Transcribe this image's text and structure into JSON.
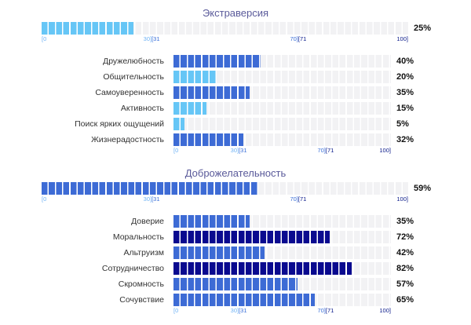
{
  "colors": {
    "low": "#66c6f6",
    "mid": "#3d6bd5",
    "high": "#0a0a8f",
    "track": "#f2f2f4"
  },
  "axis_labels": {
    "start": "[0",
    "end_low": "30]",
    "start_mid": "[31",
    "end_mid": "70]",
    "start_high": "[71",
    "end": "100]"
  },
  "sections": [
    {
      "title": "Экстраверсия",
      "overall": {
        "value": 25,
        "label": "25%",
        "level": "low"
      },
      "facets": [
        {
          "name": "Дружелюбность",
          "value": 40,
          "label": "40%",
          "level": "mid"
        },
        {
          "name": "Общительность",
          "value": 20,
          "label": "20%",
          "level": "low"
        },
        {
          "name": "Самоуверенность",
          "value": 35,
          "label": "35%",
          "level": "mid"
        },
        {
          "name": "Активность",
          "value": 15,
          "label": "15%",
          "level": "low"
        },
        {
          "name": "Поиск ярких ощущений",
          "value": 5,
          "label": "5%",
          "level": "low"
        },
        {
          "name": "Жизнерадостность",
          "value": 32,
          "label": "32%",
          "level": "mid"
        }
      ]
    },
    {
      "title": "Доброжелательность",
      "overall": {
        "value": 59,
        "label": "59%",
        "level": "mid"
      },
      "facets": [
        {
          "name": "Доверие",
          "value": 35,
          "label": "35%",
          "level": "mid"
        },
        {
          "name": "Моральность",
          "value": 72,
          "label": "72%",
          "level": "high"
        },
        {
          "name": "Альтруизм",
          "value": 42,
          "label": "42%",
          "level": "mid"
        },
        {
          "name": "Сотрудничество",
          "value": 82,
          "label": "82%",
          "level": "high"
        },
        {
          "name": "Скромность",
          "value": 57,
          "label": "57%",
          "level": "mid"
        },
        {
          "name": "Сочувствие",
          "value": 65,
          "label": "65%",
          "level": "mid"
        }
      ]
    }
  ]
}
